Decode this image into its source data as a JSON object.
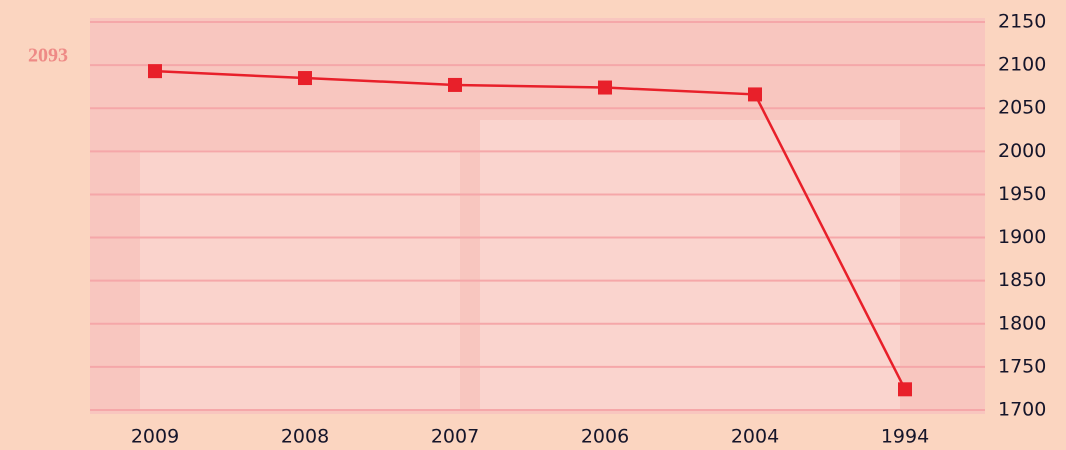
{
  "chart_data": {
    "type": "line",
    "categories": [
      "2009",
      "2008",
      "2007",
      "2006",
      "2004",
      "1994"
    ],
    "series": [
      {
        "color": "#e8202a",
        "values": [
          2093,
          2085,
          2077,
          2074,
          2066,
          1724
        ],
        "value_labels": [
          "2093",
          null,
          null,
          null,
          null,
          null
        ]
      }
    ],
    "ylim": [
      1700,
      2150
    ],
    "yticks": [
      1700,
      1750,
      1800,
      1850,
      1900,
      1950,
      2000,
      2050,
      2100,
      2150
    ],
    "grid": true,
    "y_axis_side": "right"
  }
}
